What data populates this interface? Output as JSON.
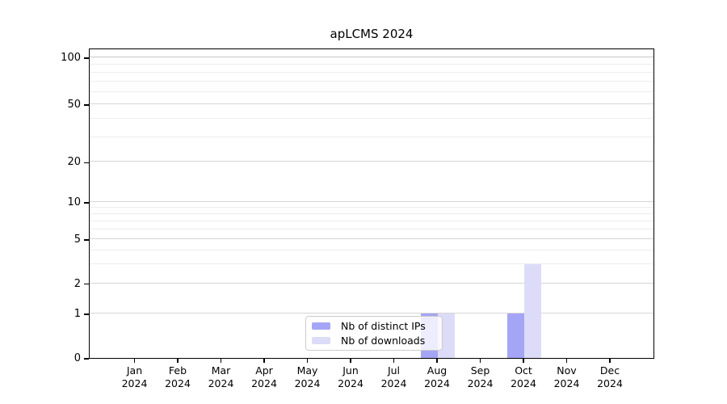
{
  "chart_data": {
    "type": "bar",
    "title": "apLCMS 2024",
    "categories": [
      "Jan 2024",
      "Feb 2024",
      "Mar 2024",
      "Apr 2024",
      "May 2024",
      "Jun 2024",
      "Jul 2024",
      "Aug 2024",
      "Sep 2024",
      "Oct 2024",
      "Nov 2024",
      "Dec 2024"
    ],
    "series": [
      {
        "name": "Nb of distinct IPs",
        "color": "#a5a5f6",
        "values": [
          0,
          0,
          0,
          0,
          0,
          0,
          0,
          1,
          0,
          1,
          0,
          0
        ]
      },
      {
        "name": "Nb of downloads",
        "color": "#dcdcf8",
        "values": [
          0,
          0,
          0,
          0,
          0,
          0,
          0,
          1,
          0,
          3,
          0,
          0
        ]
      }
    ],
    "xlabel": "",
    "ylabel": "",
    "y_axis": {
      "scale": "symlog",
      "ticks": [
        0,
        1,
        2,
        5,
        10,
        20,
        50,
        100
      ],
      "minor_gridlines": [
        3,
        4,
        6,
        7,
        8,
        9,
        30,
        40,
        60,
        70,
        80,
        90
      ],
      "range": [
        0,
        120
      ]
    },
    "grid": "horizontal-on",
    "legend_position": "inside-bottom-center",
    "colors": {
      "grid_major": "#d5d5d5",
      "grid_top_major": "#c8c8c8",
      "grid_minor": "#ececec",
      "spine": "#000000",
      "background": "#ffffff"
    }
  }
}
